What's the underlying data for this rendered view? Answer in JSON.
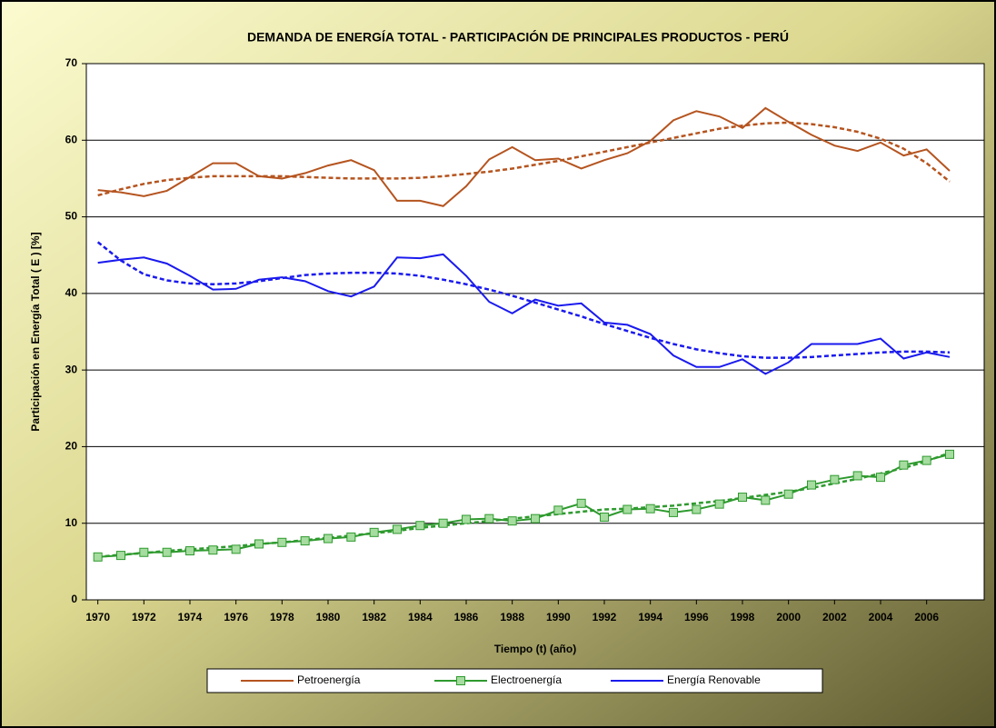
{
  "chart_data": {
    "type": "line",
    "title": "DEMANDA DE ENERGÍA TOTAL - PARTICIPACIÓN DE PRINCIPALES PRODUCTOS - PERÚ",
    "x_label": "Tiempo (t) (año)",
    "y_label": "Participación en Energía Total  ( E ) [%]",
    "x": [
      1970,
      1971,
      1972,
      1973,
      1974,
      1975,
      1976,
      1977,
      1978,
      1979,
      1980,
      1981,
      1982,
      1983,
      1984,
      1985,
      1986,
      1987,
      1988,
      1989,
      1990,
      1991,
      1992,
      1993,
      1994,
      1995,
      1996,
      1997,
      1998,
      1999,
      2000,
      2001,
      2002,
      2003,
      2004,
      2005,
      2006,
      2007
    ],
    "xlim": [
      1969.5,
      2008.5
    ],
    "xticks": [
      1970,
      1972,
      1974,
      1976,
      1978,
      1980,
      1982,
      1984,
      1986,
      1988,
      1990,
      1992,
      1994,
      1996,
      1998,
      2000,
      2002,
      2004,
      2006
    ],
    "ylim": [
      0,
      70
    ],
    "yticks": [
      0,
      10,
      20,
      30,
      40,
      50,
      60,
      70
    ],
    "grid": true,
    "legend": "bottom",
    "series": [
      {
        "name": "Petroenergía",
        "color": "#b5541f",
        "marker": "none",
        "values": [
          53.5,
          53.2,
          52.7,
          53.4,
          55.2,
          57.0,
          57.0,
          55.3,
          55.0,
          55.7,
          56.7,
          57.4,
          56.1,
          52.1,
          52.1,
          51.4,
          54.0,
          57.5,
          59.1,
          57.4,
          57.6,
          56.3,
          57.4,
          58.3,
          59.9,
          62.6,
          63.8,
          63.1,
          61.6,
          64.2,
          62.4,
          60.7,
          59.3,
          58.6,
          59.7,
          58.0,
          58.8,
          56.0
        ],
        "trend": [
          52.8,
          53.6,
          54.3,
          54.8,
          55.1,
          55.3,
          55.3,
          55.3,
          55.3,
          55.2,
          55.1,
          55.0,
          55.0,
          55.0,
          55.1,
          55.3,
          55.6,
          55.9,
          56.3,
          56.8,
          57.3,
          57.9,
          58.5,
          59.1,
          59.7,
          60.3,
          60.9,
          61.5,
          61.9,
          62.2,
          62.3,
          62.1,
          61.7,
          61.1,
          60.2,
          58.9,
          57.0,
          54.6
        ]
      },
      {
        "name": "Electroenergía",
        "color": "#2e9a2e",
        "marker": "square",
        "marker_fill": "#a6dca0",
        "values": [
          5.6,
          5.8,
          6.2,
          6.2,
          6.4,
          6.5,
          6.6,
          7.3,
          7.5,
          7.7,
          8.0,
          8.2,
          8.8,
          9.2,
          9.7,
          10.0,
          10.5,
          10.6,
          10.3,
          10.6,
          11.7,
          12.6,
          10.8,
          11.8,
          11.9,
          11.4,
          11.8,
          12.5,
          13.4,
          13.0,
          13.8,
          15.0,
          15.7,
          16.2,
          16.0,
          17.6,
          18.2,
          19.0
        ],
        "trend": [
          5.6,
          5.9,
          6.1,
          6.4,
          6.6,
          6.8,
          7.0,
          7.3,
          7.5,
          7.8,
          8.1,
          8.4,
          8.7,
          9.0,
          9.4,
          9.7,
          10.0,
          10.3,
          10.6,
          10.9,
          11.2,
          11.5,
          11.8,
          11.9,
          12.1,
          12.3,
          12.6,
          12.9,
          13.3,
          13.7,
          14.1,
          14.6,
          15.2,
          15.8,
          16.5,
          17.2,
          18.1,
          19.2
        ]
      },
      {
        "name": "Energía Renovable",
        "color": "#1a1aee",
        "marker": "none",
        "values": [
          44.0,
          44.4,
          44.7,
          43.9,
          42.3,
          40.5,
          40.6,
          41.8,
          42.1,
          41.6,
          40.3,
          39.6,
          40.9,
          44.7,
          44.6,
          45.1,
          42.3,
          38.9,
          37.4,
          39.2,
          38.4,
          38.7,
          36.2,
          35.9,
          34.7,
          31.9,
          30.4,
          30.4,
          31.4,
          29.5,
          31.0,
          33.4,
          33.4,
          33.4,
          34.1,
          31.5,
          32.3,
          31.7
        ],
        "trend": [
          46.7,
          44.3,
          42.5,
          41.7,
          41.3,
          41.2,
          41.3,
          41.6,
          42.0,
          42.4,
          42.6,
          42.7,
          42.7,
          42.6,
          42.3,
          41.8,
          41.2,
          40.5,
          39.7,
          38.8,
          37.9,
          37.0,
          36.0,
          35.1,
          34.2,
          33.4,
          32.7,
          32.2,
          31.8,
          31.6,
          31.6,
          31.7,
          31.9,
          32.1,
          32.3,
          32.4,
          32.4,
          32.3
        ]
      }
    ]
  }
}
